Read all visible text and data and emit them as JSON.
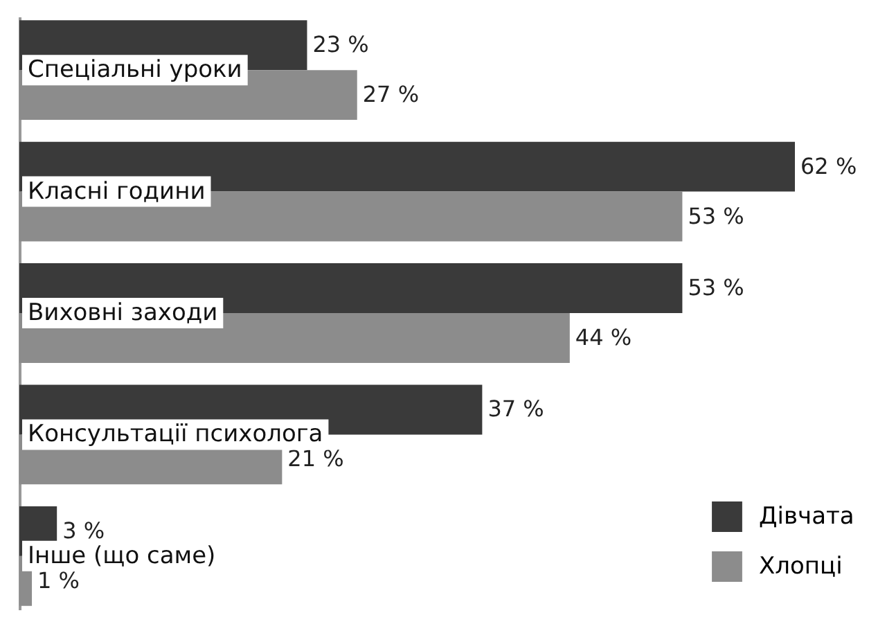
{
  "chart_data": {
    "type": "bar",
    "orientation": "horizontal",
    "categories": [
      "Спеціальні уроки",
      "Класні години",
      "Виховні заходи",
      "Консультації психолога",
      "Інше (що саме)"
    ],
    "series": [
      {
        "name": "Дівчата",
        "color": "#3a3a3a",
        "values": [
          23,
          62,
          53,
          37,
          3
        ],
        "value_labels": [
          "23 %",
          "62 %",
          "53 %",
          "37 %",
          "3 %"
        ]
      },
      {
        "name": "Хлопці",
        "color": "#8c8c8c",
        "values": [
          27,
          53,
          44,
          21,
          1
        ],
        "value_labels": [
          "27 %",
          "53 %",
          "44 %",
          "21 %",
          "1 %"
        ]
      }
    ],
    "tick_labels": false,
    "grid": false,
    "legend": "bottom right"
  }
}
